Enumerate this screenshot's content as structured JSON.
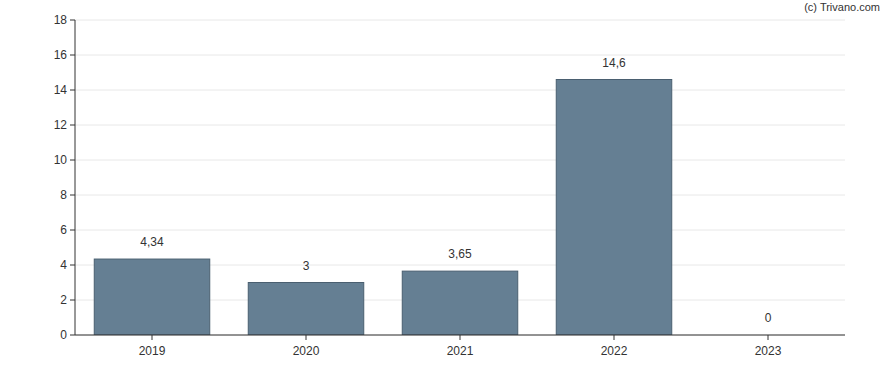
{
  "chart_data": {
    "type": "bar",
    "annotation": "(c) Trivano.com",
    "categories": [
      "2019",
      "2020",
      "2021",
      "2022",
      "2023"
    ],
    "values": [
      4.34,
      3,
      3.65,
      14.6,
      0
    ],
    "value_labels": [
      "4,34",
      "3",
      "3,65",
      "14,6",
      "0"
    ],
    "color": "#657f93",
    "ylim": [
      0,
      18
    ],
    "yticks": [
      0,
      2,
      4,
      6,
      8,
      10,
      12,
      14,
      16,
      18
    ],
    "grid": true,
    "data_labels": true
  }
}
